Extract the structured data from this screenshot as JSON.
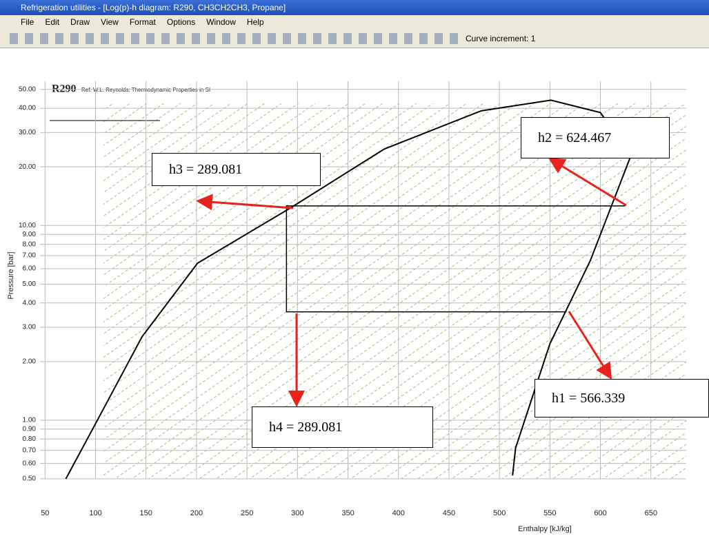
{
  "window": {
    "title": "Refrigeration utilities - [Log(p)-h diagram: R290, CH3CH2CH3, Propane]",
    "menu": [
      "File",
      "Edit",
      "Draw",
      "View",
      "Format",
      "Options",
      "Window",
      "Help"
    ],
    "toolbar_label": "Curve increment: 1"
  },
  "chart_data": {
    "type": "line",
    "title": "R290",
    "subtitle": "Ref. W.L. Reynolds: Thermodynamic Properties in SI",
    "x_label": "Enthalpy [kJ/kg]",
    "y_label": "Pressure [bar]",
    "xlim": [
      45,
      685
    ],
    "xticks": [
      50,
      100,
      150,
      200,
      250,
      300,
      350,
      400,
      450,
      500,
      550,
      600,
      650
    ],
    "ylim": [
      0.5,
      55
    ],
    "ylog": true,
    "yticks": [
      {
        "value": 0.5,
        "label": "0.50"
      },
      {
        "value": 0.6,
        "label": "0.60"
      },
      {
        "value": 0.7,
        "label": "0.70"
      },
      {
        "value": 0.8,
        "label": "0.80"
      },
      {
        "value": 0.9,
        "label": "0.90"
      },
      {
        "value": 1,
        "label": "1.00"
      },
      {
        "value": 2,
        "label": "2.00"
      },
      {
        "value": 3,
        "label": "3.00"
      },
      {
        "value": 4,
        "label": "4.00"
      },
      {
        "value": 5,
        "label": "5.00"
      },
      {
        "value": 6,
        "label": "6.00"
      },
      {
        "value": 7,
        "label": "7.00"
      },
      {
        "value": 8,
        "label": "8.00"
      },
      {
        "value": 9,
        "label": "9.00"
      },
      {
        "value": 10,
        "label": "10.00"
      },
      {
        "value": 20,
        "label": "20.00"
      },
      {
        "value": 30,
        "label": "30.00"
      },
      {
        "value": 40,
        "label": "40.00"
      },
      {
        "value": 50,
        "label": "50.00"
      }
    ],
    "grid": true,
    "series": [
      {
        "color": "#000000",
        "x": [
          70.6,
          100,
          146,
          201,
          293,
          386,
          482,
          551,
          600,
          630,
          590,
          550,
          516,
          513
        ],
        "values": [
          0.5,
          0.96,
          2.68,
          6.4,
          12.3,
          24.7,
          38.8,
          44,
          38,
          22.7,
          6.6,
          2.47,
          0.72,
          0.52
        ]
      },
      {
        "color": "#000000",
        "x": [
          624.467,
          289.081,
          289.081,
          566.339
        ],
        "values": [
          12.6,
          12.6,
          3.6,
          3.6
        ]
      }
    ],
    "annotations": [
      "h1 = 566.339",
      "h2 = 624.467",
      "h3 = 289.081",
      "h4 = 289.081"
    ]
  }
}
